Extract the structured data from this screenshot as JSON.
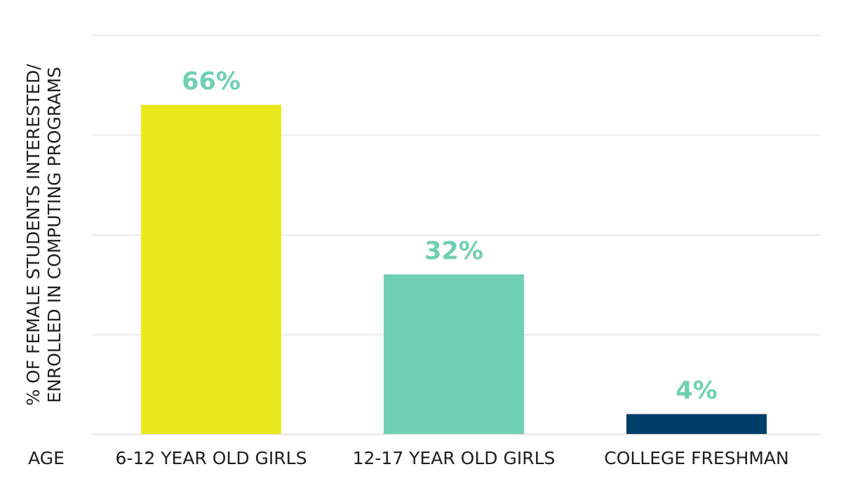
{
  "chart_data": {
    "type": "bar",
    "ylabel_line1": "% OF FEMALE STUDENTS INTERESTED/",
    "ylabel_line2": "ENROLLED IN COMPUTING PROGRAMS",
    "xlabel": "AGE",
    "categories": [
      "6-12 YEAR OLD GIRLS",
      "12-17 YEAR OLD GIRLS",
      "COLLEGE FRESHMAN"
    ],
    "values": [
      66,
      32,
      4
    ],
    "value_labels": [
      "66%",
      "32%",
      "4%"
    ],
    "bar_colors": [
      "#ebe81b",
      "#6fcfb2",
      "#003f6b"
    ],
    "value_label_color": "#6fcfb2",
    "gridline_color": "#e3e3e3",
    "ylim": [
      0,
      80
    ],
    "grid": true,
    "legend": "none"
  }
}
